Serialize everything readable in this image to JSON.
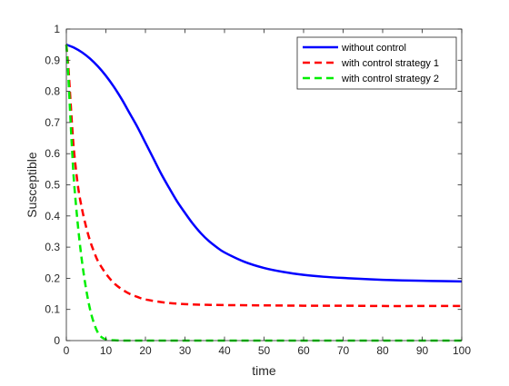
{
  "chart_data": {
    "type": "line",
    "title": "",
    "xlabel": "time",
    "ylabel": "Susceptible",
    "xlim": [
      0,
      100
    ],
    "ylim": [
      0,
      1
    ],
    "xticks": [
      0,
      10,
      20,
      30,
      40,
      50,
      60,
      70,
      80,
      90,
      100
    ],
    "yticks": [
      0,
      0.1,
      0.2,
      0.3,
      0.4,
      0.5,
      0.6,
      0.7,
      0.8,
      0.9,
      1
    ],
    "xtick_labels": [
      "0",
      "10",
      "20",
      "30",
      "40",
      "50",
      "60",
      "70",
      "80",
      "90",
      "100"
    ],
    "ytick_labels": [
      "0",
      "0.1",
      "0.2",
      "0.3",
      "0.4",
      "0.5",
      "0.6",
      "0.7",
      "0.8",
      "0.9",
      "1"
    ],
    "grid": false,
    "legend_position": "top-right",
    "series": [
      {
        "name": "without control",
        "color": "#0000ff",
        "style": "solid",
        "x": [
          0,
          2,
          4,
          6,
          8,
          10,
          12,
          14,
          16,
          18,
          20,
          22,
          24,
          26,
          28,
          30,
          32,
          34,
          36,
          38,
          40,
          45,
          50,
          55,
          60,
          65,
          70,
          75,
          80,
          85,
          90,
          95,
          100
        ],
        "y": [
          0.95,
          0.94,
          0.925,
          0.905,
          0.88,
          0.85,
          0.815,
          0.775,
          0.73,
          0.685,
          0.635,
          0.585,
          0.535,
          0.49,
          0.447,
          0.41,
          0.375,
          0.345,
          0.32,
          0.3,
          0.283,
          0.253,
          0.233,
          0.22,
          0.211,
          0.205,
          0.201,
          0.198,
          0.195,
          0.193,
          0.192,
          0.191,
          0.19
        ]
      },
      {
        "name": "with control strategy 1",
        "color": "#ff0000",
        "style": "dashed",
        "x": [
          0,
          0.5,
          1,
          1.5,
          2,
          3,
          4,
          5,
          6,
          7,
          8,
          10,
          12,
          14,
          16,
          18,
          20,
          25,
          30,
          35,
          40,
          50,
          60,
          70,
          80,
          90,
          100
        ],
        "y": [
          0.95,
          0.88,
          0.78,
          0.68,
          0.6,
          0.49,
          0.42,
          0.365,
          0.32,
          0.285,
          0.255,
          0.215,
          0.185,
          0.165,
          0.15,
          0.14,
          0.132,
          0.122,
          0.117,
          0.115,
          0.114,
          0.113,
          0.112,
          0.112,
          0.111,
          0.111,
          0.111
        ]
      },
      {
        "name": "with control strategy 2",
        "color": "#00ee00",
        "style": "dashed",
        "x": [
          0,
          0.5,
          1,
          1.5,
          2,
          3,
          4,
          5,
          6,
          7,
          8,
          9,
          10,
          11,
          12,
          14,
          16,
          20,
          30,
          40,
          50,
          60,
          70,
          80,
          90,
          100
        ],
        "y": [
          0.95,
          0.85,
          0.72,
          0.6,
          0.5,
          0.36,
          0.25,
          0.165,
          0.1,
          0.055,
          0.025,
          0.01,
          0.004,
          0.002,
          0.001,
          0,
          0,
          0,
          0,
          0,
          0,
          0,
          0,
          0,
          0,
          0
        ]
      }
    ]
  }
}
